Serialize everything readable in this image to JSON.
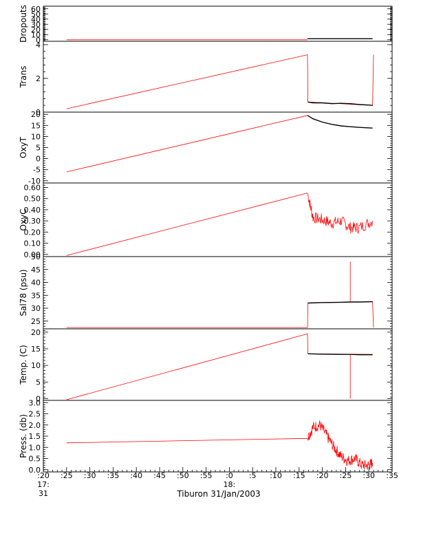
{
  "chart_data": {
    "type": "line",
    "xlabel": "Tiburon 31/Jan/2003",
    "x_ticks": [
      ":20",
      ":25",
      ":30",
      ":35",
      ":40",
      ":45",
      ":50",
      ":55",
      ":0",
      ":5",
      ":10",
      ":15",
      ":20",
      ":25",
      ":30",
      ":35"
    ],
    "x_day_labels": [
      {
        "hour": "17:",
        "day": "31"
      },
      {
        "hour": "18:"
      }
    ],
    "xlim_minutes": [
      -40,
      35
    ],
    "colors": {
      "linear": "#ff0000",
      "data": "#000000",
      "noise": "#ff0000"
    },
    "panels": [
      {
        "ylabel": "Dropouts",
        "ylim": [
          -3,
          65
        ],
        "y_ticks": [
          "60",
          "50",
          "40",
          "30",
          "20",
          "10",
          "0"
        ],
        "y_tick_values": [
          60,
          50,
          40,
          30,
          20,
          10,
          0
        ],
        "series": [
          {
            "style": "linear",
            "x": [
              -35,
              16.8
            ],
            "y": [
              0,
              0
            ]
          },
          {
            "style": "data",
            "x": [
              16.8,
              30.8
            ],
            "y": [
              2,
              2
            ]
          }
        ]
      },
      {
        "ylabel": "Trans",
        "ylim": [
          0,
          4.2
        ],
        "y_ticks": [
          "4",
          "2",
          "0"
        ],
        "y_tick_values": [
          4,
          2,
          0
        ],
        "series": [
          {
            "style": "linear",
            "x": [
              -35,
              16.8,
              16.9,
              30.8,
              31
            ],
            "y": [
              0.2,
              3.4,
              0.6,
              0.4,
              3.4
            ]
          },
          {
            "style": "data",
            "x": [
              16.9,
              18,
              20,
              22,
              24,
              26,
              28,
              30,
              30.8
            ],
            "y": [
              0.6,
              0.55,
              0.55,
              0.5,
              0.52,
              0.5,
              0.45,
              0.42,
              0.4
            ]
          }
        ]
      },
      {
        "ylabel": "OxyT",
        "ylim": [
          -11,
          21
        ],
        "y_ticks": [
          "20",
          "15",
          "10",
          "5",
          "0",
          "-5",
          "-10"
        ],
        "y_tick_values": [
          20,
          15,
          10,
          5,
          0,
          -5,
          -10
        ],
        "series": [
          {
            "style": "linear",
            "x": [
              -35,
              16.8
            ],
            "y": [
              -6,
              19.5
            ]
          },
          {
            "style": "data",
            "x": [
              16.8,
              18,
              20,
              22,
              24,
              26,
              28,
              30.8
            ],
            "y": [
              19.5,
              18,
              16.5,
              15.5,
              14.8,
              14.4,
              14.1,
              13.8
            ]
          }
        ]
      },
      {
        "ylabel": "OxyC",
        "ylim": [
          -0.02,
          0.64
        ],
        "y_ticks": [
          "0.60",
          "0.50",
          "0.40",
          "0.30",
          "0.20",
          "0.10",
          "0.00"
        ],
        "y_tick_values": [
          0.6,
          0.5,
          0.4,
          0.3,
          0.2,
          0.1,
          0.0
        ],
        "series": [
          {
            "style": "linear",
            "x": [
              -35,
              16.8
            ],
            "y": [
              -0.01,
              0.55
            ]
          },
          {
            "style": "noise",
            "x": [
              16.8,
              18,
              20,
              22,
              24,
              26,
              28,
              30.8
            ],
            "y": [
              0.55,
              0.33,
              0.31,
              0.28,
              0.3,
              0.24,
              0.24,
              0.3
            ]
          }
        ]
      },
      {
        "ylabel": "Sal78 (psu)",
        "ylim": [
          22,
          50
        ],
        "y_ticks": [
          "50",
          "45",
          "40",
          "35",
          "30",
          "25"
        ],
        "y_tick_values": [
          50,
          45,
          40,
          35,
          30,
          25
        ],
        "series": [
          {
            "style": "linear",
            "x": [
              -35,
              16.8,
              16.9,
              30.8,
              31
            ],
            "y": [
              22.5,
              22.5,
              32,
              32.5,
              22.5
            ]
          },
          {
            "style": "data",
            "x": [
              16.9,
              20,
              24,
              26,
              28,
              30.8
            ],
            "y": [
              32,
              32.2,
              32.3,
              32.4,
              32.4,
              32.5
            ]
          },
          {
            "style": "linear",
            "x": [
              26,
              26,
              26
            ],
            "y": [
              32.4,
              48,
              32.4
            ]
          }
        ]
      },
      {
        "ylabel": "Temp. (C)",
        "ylim": [
          -0.5,
          21
        ],
        "y_ticks": [
          "20",
          "15",
          "10",
          "5",
          "0"
        ],
        "y_tick_values": [
          20,
          15,
          10,
          5,
          0
        ],
        "series": [
          {
            "style": "linear",
            "x": [
              -35,
              16.8,
              16.9,
              30.8
            ],
            "y": [
              -0.3,
              19.5,
              13.5,
              13.3
            ]
          },
          {
            "style": "data",
            "x": [
              16.9,
              20,
              24,
              26,
              28,
              30.8
            ],
            "y": [
              13.5,
              13.4,
              13.3,
              13.3,
              13.2,
              13.2
            ]
          },
          {
            "style": "linear",
            "x": [
              26,
              26,
              26
            ],
            "y": [
              13.3,
              0,
              13.3
            ]
          }
        ]
      },
      {
        "ylabel": "Press. (db)",
        "ylim": [
          -0.1,
          3.1
        ],
        "y_ticks": [
          "3.0",
          "2.5",
          "2.0",
          "1.5",
          "1.0",
          "0.5",
          "0.0"
        ],
        "y_tick_values": [
          3.0,
          2.5,
          2.0,
          1.5,
          1.0,
          0.5,
          0.0
        ],
        "series": [
          {
            "style": "linear",
            "x": [
              -35,
              16.8
            ],
            "y": [
              1.2,
              1.4
            ]
          },
          {
            "style": "noise",
            "x": [
              16.8,
              18,
              19.5,
              21,
              22.5,
              24,
              25.5,
              27,
              28.5,
              30,
              30.8
            ],
            "y": [
              1.4,
              1.9,
              2.0,
              1.5,
              1.0,
              0.6,
              0.4,
              0.5,
              0.2,
              0.2,
              0.3
            ]
          }
        ]
      }
    ]
  }
}
